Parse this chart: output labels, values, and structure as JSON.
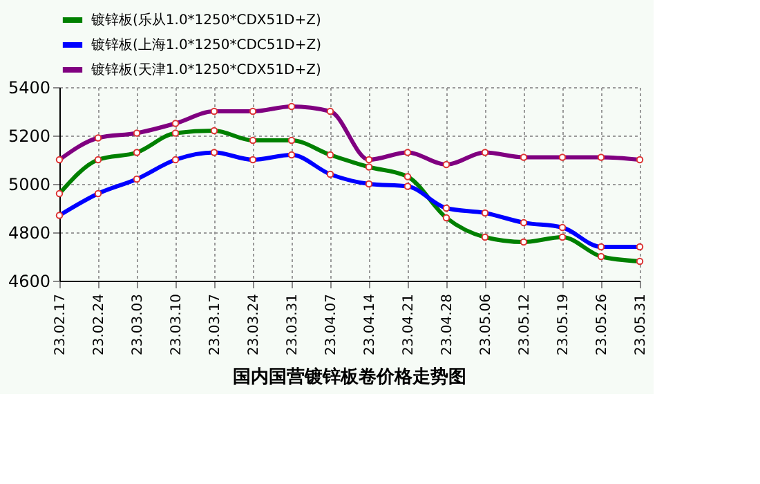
{
  "chart_data": {
    "type": "line",
    "title": "国内国营镀锌板卷价格走势图",
    "categories": [
      "23.02.17",
      "23.02.24",
      "23.03.03",
      "23.03.10",
      "23.03.17",
      "23.03.24",
      "23.03.31",
      "23.04.07",
      "23.04.14",
      "23.04.21",
      "23.04.28",
      "23.05.06",
      "23.05.12",
      "23.05.19",
      "23.05.26",
      "23.05.31"
    ],
    "series": [
      {
        "name": "镀锌板(乐从1.0*1250*CDX51D+Z)",
        "color": "#008000",
        "values": [
          4960,
          5100,
          5130,
          5210,
          5220,
          5180,
          5180,
          5120,
          5070,
          5030,
          4860,
          4780,
          4760,
          4780,
          4700,
          4680
        ]
      },
      {
        "name": "镀锌板(上海1.0*1250*CDC51D+Z)",
        "color": "#0000ff",
        "values": [
          4870,
          4960,
          5020,
          5100,
          5130,
          5100,
          5120,
          5040,
          5000,
          4990,
          4900,
          4880,
          4840,
          4820,
          4740,
          4740
        ]
      },
      {
        "name": "镀锌板(天津1.0*1250*CDX51D+Z)",
        "color": "#800080",
        "values": [
          5100,
          5190,
          5210,
          5250,
          5300,
          5300,
          5320,
          5300,
          5100,
          5130,
          5080,
          5130,
          5110,
          5110,
          5110,
          5100
        ]
      }
    ],
    "ylim": [
      4600,
      5400
    ],
    "yticks": [
      4600,
      4800,
      5000,
      5200,
      5400
    ],
    "grid": true,
    "legend": "top",
    "marker": "circle",
    "line_style": "solid"
  }
}
